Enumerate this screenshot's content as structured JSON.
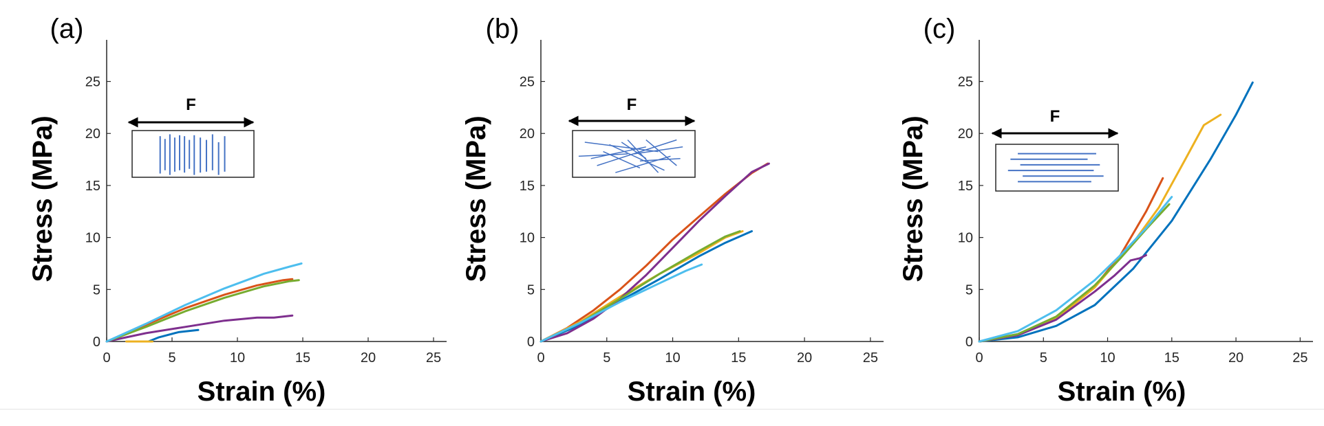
{
  "colors": {
    "series": [
      "#0072BD",
      "#D95319",
      "#EDB120",
      "#7E2F8E",
      "#77AC30",
      "#4DBEEE"
    ],
    "axis": "#262626",
    "inset_fiber": "#4472C4"
  },
  "inset": {
    "force_label": "F"
  },
  "chart_data": [
    {
      "type": "line",
      "panel_label": "(a)",
      "xlabel": "Strain (%)",
      "ylabel": "Stress (MPa)",
      "xlim": [
        0,
        26
      ],
      "ylim": [
        0,
        29
      ],
      "xticks": [
        0,
        5,
        10,
        15,
        20,
        25
      ],
      "yticks": [
        0,
        5,
        10,
        15,
        20,
        25
      ],
      "grid": false,
      "fiber_orientation": "perpendicular",
      "series": [
        {
          "color": "#0072BD",
          "points": [
            [
              3.2,
              0
            ],
            [
              4,
              0.4
            ],
            [
              5.5,
              0.9
            ],
            [
              7,
              1.1
            ]
          ]
        },
        {
          "color": "#D95319",
          "points": [
            [
              0,
              0
            ],
            [
              3,
              1.6
            ],
            [
              6,
              3.2
            ],
            [
              9,
              4.5
            ],
            [
              11.5,
              5.4
            ],
            [
              13.5,
              5.9
            ],
            [
              14.2,
              6.0
            ]
          ]
        },
        {
          "color": "#EDB120",
          "points": [
            [
              1.5,
              0
            ],
            [
              2.5,
              0
            ],
            [
              3.5,
              0
            ]
          ]
        },
        {
          "color": "#7E2F8E",
          "points": [
            [
              0,
              0
            ],
            [
              3,
              0.8
            ],
            [
              6,
              1.4
            ],
            [
              9,
              2.0
            ],
            [
              11.5,
              2.3
            ],
            [
              12.8,
              2.3
            ],
            [
              14.2,
              2.5
            ]
          ]
        },
        {
          "color": "#77AC30",
          "points": [
            [
              0,
              0
            ],
            [
              3,
              1.4
            ],
            [
              6,
              2.9
            ],
            [
              9,
              4.2
            ],
            [
              12,
              5.3
            ],
            [
              14,
              5.8
            ],
            [
              14.7,
              5.9
            ]
          ]
        },
        {
          "color": "#4DBEEE",
          "points": [
            [
              0,
              0
            ],
            [
              3,
              1.7
            ],
            [
              6,
              3.5
            ],
            [
              9,
              5.1
            ],
            [
              12,
              6.5
            ],
            [
              14,
              7.2
            ],
            [
              14.9,
              7.5
            ]
          ]
        }
      ]
    },
    {
      "type": "line",
      "panel_label": "(b)",
      "xlabel": "Strain (%)",
      "ylabel": "Stress (MPa)",
      "xlim": [
        0,
        26
      ],
      "ylim": [
        0,
        29
      ],
      "xticks": [
        0,
        5,
        10,
        15,
        20,
        25
      ],
      "yticks": [
        0,
        5,
        10,
        15,
        20,
        25
      ],
      "grid": false,
      "fiber_orientation": "random",
      "series": [
        {
          "color": "#0072BD",
          "points": [
            [
              0,
              0
            ],
            [
              3,
              1.6
            ],
            [
              6,
              3.9
            ],
            [
              9,
              6.0
            ],
            [
              12,
              8.2
            ],
            [
              14,
              9.5
            ],
            [
              16,
              10.6
            ]
          ]
        },
        {
          "color": "#D95319",
          "points": [
            [
              0,
              0
            ],
            [
              2,
              1.3
            ],
            [
              4,
              3.0
            ],
            [
              6,
              5.0
            ],
            [
              8,
              7.3
            ],
            [
              10,
              9.8
            ],
            [
              12,
              12.0
            ],
            [
              14,
              14.2
            ],
            [
              16,
              16.2
            ],
            [
              17.2,
              17.1
            ]
          ]
        },
        {
          "color": "#EDB120",
          "points": [
            [
              0,
              0
            ],
            [
              3,
              1.9
            ],
            [
              6,
              4.3
            ],
            [
              9,
              6.5
            ],
            [
              12,
              8.5
            ],
            [
              14,
              10.0
            ],
            [
              15.3,
              10.6
            ]
          ]
        },
        {
          "color": "#7E2F8E",
          "points": [
            [
              0,
              0
            ],
            [
              2,
              0.8
            ],
            [
              4,
              2.2
            ],
            [
              6,
              4.1
            ],
            [
              8,
              6.4
            ],
            [
              10,
              9.0
            ],
            [
              12,
              11.6
            ],
            [
              14,
              14.0
            ],
            [
              16,
              16.3
            ],
            [
              17.3,
              17.1
            ]
          ]
        },
        {
          "color": "#77AC30",
          "points": [
            [
              0,
              0
            ],
            [
              3,
              1.8
            ],
            [
              6,
              4.1
            ],
            [
              9,
              6.5
            ],
            [
              12,
              8.7
            ],
            [
              14,
              10.1
            ],
            [
              15.1,
              10.6
            ]
          ]
        },
        {
          "color": "#4DBEEE",
          "points": [
            [
              0,
              0
            ],
            [
              3,
              1.8
            ],
            [
              6,
              3.8
            ],
            [
              9,
              5.6
            ],
            [
              11,
              6.8
            ],
            [
              12.2,
              7.4
            ]
          ]
        }
      ]
    },
    {
      "type": "line",
      "panel_label": "(c)",
      "xlabel": "Strain (%)",
      "ylabel": "Stress (MPa)",
      "xlim": [
        0,
        26
      ],
      "ylim": [
        0,
        29
      ],
      "xticks": [
        0,
        5,
        10,
        15,
        20,
        25
      ],
      "yticks": [
        0,
        5,
        10,
        15,
        20,
        25
      ],
      "grid": false,
      "fiber_orientation": "parallel",
      "series": [
        {
          "color": "#0072BD",
          "points": [
            [
              0,
              0
            ],
            [
              3,
              0.4
            ],
            [
              6,
              1.5
            ],
            [
              9,
              3.5
            ],
            [
              12,
              7.0
            ],
            [
              15,
              11.6
            ],
            [
              18,
              17.5
            ],
            [
              20,
              21.8
            ],
            [
              21.3,
              24.9
            ]
          ]
        },
        {
          "color": "#D95319",
          "points": [
            [
              0,
              0
            ],
            [
              3,
              0.7
            ],
            [
              6,
              2.3
            ],
            [
              9,
              5.3
            ],
            [
              11,
              8.3
            ],
            [
              13,
              12.5
            ],
            [
              14.3,
              15.7
            ]
          ]
        },
        {
          "color": "#EDB120",
          "points": [
            [
              0,
              0
            ],
            [
              3,
              0.6
            ],
            [
              6,
              2.2
            ],
            [
              9,
              5.2
            ],
            [
              12,
              9.5
            ],
            [
              14,
              12.9
            ],
            [
              16,
              17.4
            ],
            [
              17.5,
              20.8
            ],
            [
              18.8,
              21.8
            ]
          ]
        },
        {
          "color": "#7E2F8E",
          "points": [
            [
              0,
              0
            ],
            [
              3,
              0.6
            ],
            [
              6,
              2.1
            ],
            [
              9,
              4.8
            ],
            [
              10.5,
              6.3
            ],
            [
              11.8,
              7.8
            ],
            [
              12.5,
              8.0
            ],
            [
              13,
              8.3
            ]
          ]
        },
        {
          "color": "#77AC30",
          "points": [
            [
              0,
              0
            ],
            [
              3,
              0.7
            ],
            [
              6,
              2.4
            ],
            [
              9,
              5.4
            ],
            [
              11,
              8.0
            ],
            [
              13,
              10.8
            ],
            [
              14.8,
              13.2
            ]
          ]
        },
        {
          "color": "#4DBEEE",
          "points": [
            [
              0,
              0
            ],
            [
              3,
              1.0
            ],
            [
              6,
              3.0
            ],
            [
              9,
              5.9
            ],
            [
              11,
              8.3
            ],
            [
              13,
              10.9
            ],
            [
              15,
              13.9
            ]
          ]
        }
      ]
    }
  ]
}
